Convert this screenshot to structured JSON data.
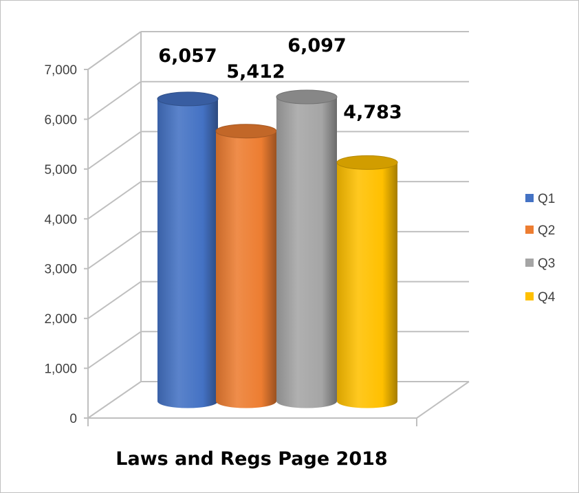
{
  "chart_data": {
    "type": "bar",
    "style": "3d-cylinder",
    "title": "Laws and Regs Page 2018",
    "xlabel": "",
    "ylabel": "",
    "ylim": [
      0,
      7000
    ],
    "yticks": [
      0,
      1000,
      2000,
      3000,
      4000,
      5000,
      6000,
      7000
    ],
    "ytick_labels": [
      "0",
      "1,000",
      "2,000",
      "3,000",
      "4,000",
      "5,000",
      "6,000",
      "7,000"
    ],
    "grid": true,
    "legend_position": "right",
    "series": [
      {
        "name": "Q1",
        "value": 6057,
        "label": "6,057",
        "color": "#4472C4"
      },
      {
        "name": "Q2",
        "value": 5412,
        "label": "5,412",
        "color": "#ED7D31"
      },
      {
        "name": "Q3",
        "value": 6097,
        "label": "6,097",
        "color": "#A5A5A5"
      },
      {
        "name": "Q4",
        "value": 4783,
        "label": "4,783",
        "color": "#FFC000"
      }
    ]
  }
}
